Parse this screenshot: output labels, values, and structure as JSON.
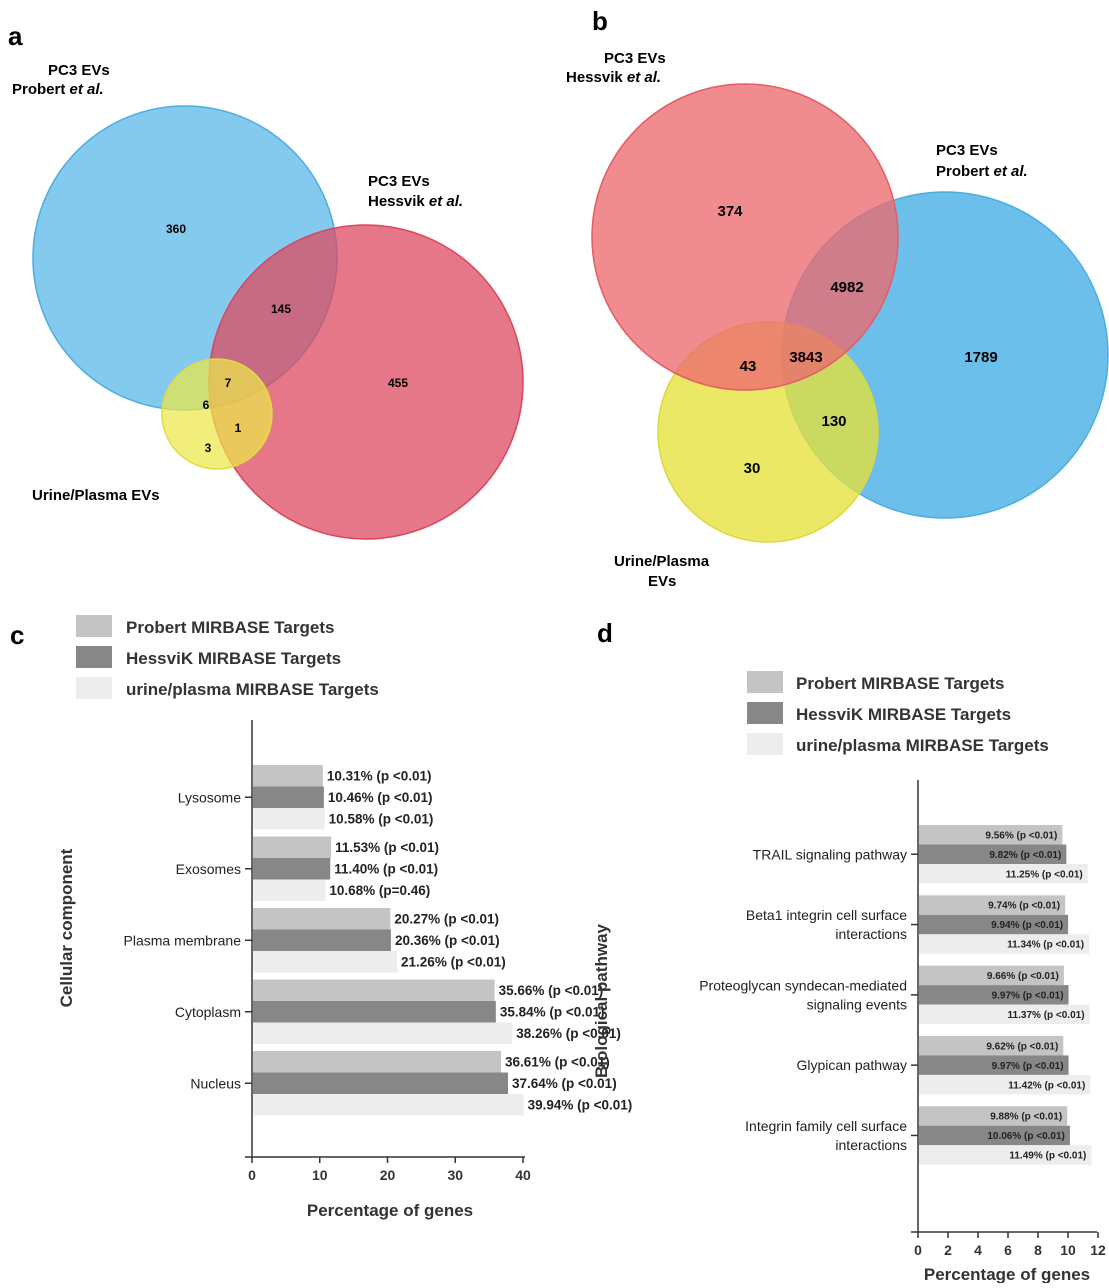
{
  "panels": {
    "a": "a",
    "b": "b",
    "c": "c",
    "d": "d"
  },
  "venn_a": {
    "sets": [
      {
        "line1": "PC3 EVs",
        "line2_name": "Probert",
        "line2_etal": "et al.",
        "color": "#5bb8e8"
      },
      {
        "line1": "PC3 EVs",
        "line2_name": "Hessvik",
        "line2_etal": "et al.",
        "color": "#e05b6e"
      },
      {
        "line1": "Urine/Plasma EVs",
        "color": "#e6e45a"
      }
    ],
    "counts": {
      "probert_only": "360",
      "probert_hessvik": "145",
      "hessvik_only": "455",
      "all_three": "7",
      "probert_urine": "6",
      "urine_only": "3",
      "hessvik_urine": "1"
    }
  },
  "venn_b": {
    "sets": [
      {
        "line1": "PC3 EVs",
        "line2_name": "Hessvik",
        "line2_etal": "et al.",
        "color": "#ea7377"
      },
      {
        "line1": "PC3 EVs",
        "line2_name": "Probert",
        "line2_etal": "et al.",
        "color": "#5bb8e8"
      },
      {
        "line1": "Urine/Plasma",
        "line2": "EVs",
        "color": "#e6e45a"
      }
    ],
    "counts": {
      "hessvik_only": "374",
      "hessvik_probert": "4982",
      "probert_only": "1789",
      "hessvik_urine": "43",
      "all_three": "3843",
      "probert_urine": "130",
      "urine_only": "30"
    }
  },
  "legend": [
    {
      "label": "Probert MIRBASE Targets",
      "color": "#c4c4c4"
    },
    {
      "label": "HessviK MIRBASE Targets",
      "color": "#878787"
    },
    {
      "label": "urine/plasma MIRBASE Targets",
      "color": "#ededed"
    }
  ],
  "chart_data": [
    {
      "type": "bar",
      "orientation": "horizontal",
      "ylabel": "Cellular component",
      "xlabel": "Percentage of genes",
      "xlim": [
        0,
        40
      ],
      "xticks": [
        0,
        10,
        20,
        30,
        40
      ],
      "categories": [
        "Lysosome",
        "Exosomes",
        "Plasma membrane",
        "Cytoplasm",
        "Nucleus"
      ],
      "series": [
        {
          "name": "Probert MIRBASE Targets",
          "values": [
            10.31,
            11.53,
            20.27,
            35.66,
            36.61
          ],
          "labels": [
            "10.31% (p <0.01)",
            "11.53% (p <0.01)",
            "20.27% (p <0.01)",
            "35.66% (p <0.01)",
            "36.61% (p <0.01)"
          ]
        },
        {
          "name": "HessviK MIRBASE Targets",
          "values": [
            10.46,
            11.4,
            20.36,
            35.84,
            37.64
          ],
          "labels": [
            "10.46% (p <0.01)",
            "11.40% (p <0.01)",
            "20.36% (p <0.01)",
            "35.84% (p <0.01)",
            "37.64% (p <0.01)"
          ]
        },
        {
          "name": "urine/plasma MIRBASE Targets",
          "values": [
            10.58,
            10.68,
            21.26,
            38.26,
            39.94
          ],
          "labels": [
            "10.58% (p <0.01)",
            "10.68% (p=0.46)",
            "21.26% (p <0.01)",
            "38.26% (p <0.01)",
            "39.94% (p <0.01)"
          ]
        }
      ]
    },
    {
      "type": "bar",
      "orientation": "horizontal",
      "ylabel": "Biological pathway",
      "xlabel": "Percentage of genes",
      "xlim": [
        0,
        12
      ],
      "xticks": [
        0,
        2,
        4,
        6,
        8,
        10,
        12
      ],
      "categories": [
        [
          "TRAIL signaling pathway"
        ],
        [
          "Beta1 integrin cell surface",
          "interactions"
        ],
        [
          "Proteoglycan syndecan-mediated",
          "signaling events"
        ],
        [
          "Glypican pathway"
        ],
        [
          "Integrin family cell surface",
          "interactions"
        ]
      ],
      "series": [
        {
          "name": "Probert MIRBASE Targets",
          "values": [
            9.56,
            9.74,
            9.66,
            9.62,
            9.88
          ],
          "labels": [
            "9.56% (p <0.01)",
            "9.74% (p <0.01)",
            "9.66% (p <0.01)",
            "9.62% (p <0.01)",
            "9.88% (p <0.01)"
          ]
        },
        {
          "name": "HessviK MIRBASE Targets",
          "values": [
            9.82,
            9.94,
            9.97,
            9.97,
            10.06
          ],
          "labels": [
            "9.82% (p <0.01)",
            "9.94% (p <0.01)",
            "9.97% (p <0.01)",
            "9.97% (p <0.01)",
            "10.06% (p <0.01)"
          ]
        },
        {
          "name": "urine/plasma MIRBASE Targets",
          "values": [
            11.25,
            11.34,
            11.37,
            11.42,
            11.49
          ],
          "labels": [
            "11.25% (p <0.01)",
            "11.34% (p <0.01)",
            "11.37% (p <0.01)",
            "11.42% (p <0.01)",
            "11.49% (p <0.01)"
          ]
        }
      ]
    }
  ]
}
